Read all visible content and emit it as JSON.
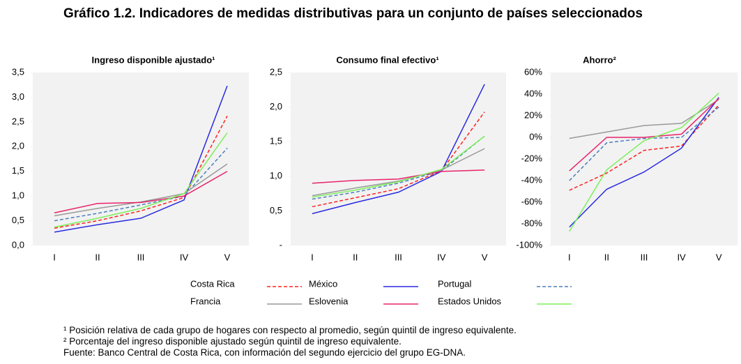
{
  "title": "Gráfico 1.2. Indicadores de medidas distributivas para un conjunto de países seleccionados",
  "chart_data": [
    {
      "type": "line",
      "title": "Ingreso disponible ajustado¹",
      "categories": [
        "I",
        "II",
        "III",
        "IV",
        "V"
      ],
      "ylim": [
        0,
        3.5
      ],
      "yticks": [
        {
          "value": 0,
          "label": "0,0"
        },
        {
          "value": 0.5,
          "label": "0,5"
        },
        {
          "value": 1,
          "label": "1,0"
        },
        {
          "value": 1.5,
          "label": "1,5"
        },
        {
          "value": 2,
          "label": "2,0"
        },
        {
          "value": 2.5,
          "label": "2,5"
        },
        {
          "value": 3,
          "label": "3,0"
        },
        {
          "value": 3.5,
          "label": "3,5"
        }
      ],
      "series": [
        {
          "name": "Costa Rica",
          "color": "#ff2020",
          "dashed": true,
          "values": [
            0.35,
            0.5,
            0.7,
            0.97,
            2.62
          ]
        },
        {
          "name": "México",
          "color": "#2a2ae0",
          "dashed": false,
          "values": [
            0.27,
            0.42,
            0.55,
            0.92,
            3.23
          ]
        },
        {
          "name": "Portugal",
          "color": "#4a7ebb",
          "dashed": true,
          "values": [
            0.5,
            0.65,
            0.82,
            1.0,
            1.97
          ]
        },
        {
          "name": "Francia",
          "color": "#999999",
          "dashed": false,
          "values": [
            0.6,
            0.75,
            0.88,
            1.05,
            1.65
          ]
        },
        {
          "name": "Eslovenia",
          "color": "#e8236a",
          "dashed": false,
          "values": [
            0.66,
            0.85,
            0.87,
            1.0,
            1.5
          ]
        },
        {
          "name": "Estados Unidos",
          "color": "#7cf05a",
          "dashed": false,
          "values": [
            0.37,
            0.55,
            0.75,
            1.05,
            2.28
          ]
        }
      ]
    },
    {
      "type": "line",
      "title": "Consumo final efectivo¹",
      "categories": [
        "I",
        "II",
        "III",
        "IV",
        "V"
      ],
      "ylim": [
        0,
        2.5
      ],
      "yticks": [
        {
          "value": 0,
          "label": "-"
        },
        {
          "value": 0.5,
          "label": "0,5"
        },
        {
          "value": 1,
          "label": "1,0"
        },
        {
          "value": 1.5,
          "label": "1,5"
        },
        {
          "value": 2,
          "label": "2,0"
        },
        {
          "value": 2.5,
          "label": "2,5"
        }
      ],
      "series": [
        {
          "color": "#ff2020",
          "dashed": true,
          "values": [
            0.56,
            0.69,
            0.82,
            1.08,
            1.93
          ]
        },
        {
          "color": "#2a2ae0",
          "dashed": false,
          "values": [
            0.46,
            0.62,
            0.77,
            1.07,
            2.33
          ]
        },
        {
          "color": "#4a7ebb",
          "dashed": true,
          "values": [
            0.67,
            0.77,
            0.9,
            1.08,
            1.58
          ]
        },
        {
          "color": "#999999",
          "dashed": false,
          "values": [
            0.72,
            0.83,
            0.93,
            1.09,
            1.4
          ]
        },
        {
          "color": "#e8236a",
          "dashed": false,
          "values": [
            0.9,
            0.94,
            0.96,
            1.07,
            1.09
          ]
        },
        {
          "color": "#7cf05a",
          "dashed": false,
          "values": [
            0.7,
            0.8,
            0.92,
            1.1,
            1.58
          ]
        }
      ]
    },
    {
      "type": "line",
      "title": "Ahorro²",
      "categories": [
        "I",
        "II",
        "III",
        "IV",
        "V"
      ],
      "ylim": [
        -100,
        60
      ],
      "yticks": [
        {
          "value": -100,
          "label": "-100%"
        },
        {
          "value": -80,
          "label": "-80%"
        },
        {
          "value": -60,
          "label": "-60%"
        },
        {
          "value": -40,
          "label": "-40%"
        },
        {
          "value": -20,
          "label": "-20%"
        },
        {
          "value": 0,
          "label": "0%"
        },
        {
          "value": 20,
          "label": "20%"
        },
        {
          "value": 40,
          "label": "40%"
        },
        {
          "value": 60,
          "label": "60%"
        }
      ],
      "series": [
        {
          "color": "#ff2020",
          "dashed": true,
          "values": [
            -49,
            -33,
            -12,
            -8,
            30
          ]
        },
        {
          "color": "#2a2ae0",
          "dashed": false,
          "values": [
            -83,
            -48,
            -32,
            -10,
            37
          ]
        },
        {
          "color": "#4a7ebb",
          "dashed": true,
          "values": [
            -40,
            -5,
            -1,
            0,
            28
          ]
        },
        {
          "color": "#999999",
          "dashed": false,
          "values": [
            -1,
            5,
            11,
            13,
            35
          ]
        },
        {
          "color": "#e8236a",
          "dashed": false,
          "values": [
            -31,
            0,
            0,
            3,
            36
          ]
        },
        {
          "color": "#7cf05a",
          "dashed": false,
          "values": [
            -87,
            -30,
            -3,
            9,
            41
          ]
        }
      ]
    }
  ],
  "notes": [
    "¹ Posición relativa de cada grupo de hogares con respecto al promedio, según quintil de ingreso equivalente.",
    "² Porcentaje del ingreso disponible ajustado según quintil de ingreso equivalente.",
    "Fuente: Banco Central de Costa Rica, con información del segundo ejercicio del grupo EG-DNA."
  ]
}
